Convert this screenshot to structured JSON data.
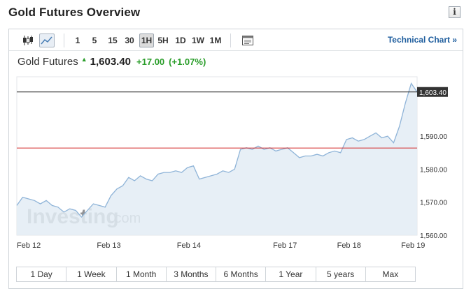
{
  "header": {
    "title": "Gold Futures Overview",
    "info_label": "i"
  },
  "toolbar": {
    "timeframes": [
      "1",
      "5",
      "15",
      "30",
      "1H",
      "5H",
      "1D",
      "1W",
      "1M"
    ],
    "active_timeframe": "1H",
    "technical_link": "Technical Chart »"
  },
  "quote": {
    "name": "Gold Futures",
    "arrow": "▲",
    "price": "1,603.40",
    "change": "+17.00",
    "change_pct": "(+1.07%)"
  },
  "watermark": {
    "brand": "Investing",
    "suffix": ".com"
  },
  "range_buttons": [
    "1 Day",
    "1 Week",
    "1 Month",
    "3 Months",
    "6 Months",
    "1 Year",
    "5 years",
    "Max"
  ],
  "colors": {
    "line": "#8fb4d8",
    "fill": "#e3ecf5",
    "up": "#2a9d2a",
    "link": "#1f5e9e",
    "ref_line": "#d32f2f",
    "last_line": "#222222",
    "price_tag": "#333333"
  },
  "chart_data": {
    "type": "area",
    "title": "",
    "xlabel": "",
    "ylabel": "",
    "ylim": [
      1560,
      1608
    ],
    "y_ticks": [
      "1,560.00",
      "1,570.00",
      "1,580.00",
      "1,590.00"
    ],
    "x_ticks": [
      "Feb 12",
      "Feb 13",
      "Feb 14",
      "Feb 17",
      "Feb 18",
      "Feb 19"
    ],
    "last_price": 1603.4,
    "last_price_label": "1,603.40",
    "reference_line": 1586.4,
    "series": [
      {
        "values": [
          1569.0,
          1571.5,
          1571.0,
          1570.5,
          1569.5,
          1570.5,
          1569.0,
          1568.5,
          1567.0,
          1568.0,
          1567.5,
          1565.5,
          1567.5,
          1569.5,
          1569.0,
          1568.5,
          1572.0,
          1574.0,
          1575.0,
          1577.5,
          1576.5,
          1578.0,
          1577.0,
          1576.5,
          1578.5,
          1579.0,
          1579.0,
          1579.5,
          1579.0,
          1580.5,
          1581.0,
          1577.0,
          1577.5,
          1578.0,
          1578.5,
          1579.5,
          1579.0,
          1580.0,
          1586.0,
          1586.5,
          1586.0,
          1587.0,
          1586.0,
          1586.5,
          1585.5,
          1586.0,
          1586.5,
          1585.0,
          1583.5,
          1584.0,
          1584.0,
          1584.5,
          1584.0,
          1585.0,
          1585.5,
          1585.0,
          1589.0,
          1589.5,
          1588.5,
          1589.0,
          1590.0,
          1591.0,
          1589.5,
          1590.0,
          1588.0,
          1593.0,
          1600.0,
          1606.0,
          1603.4
        ]
      }
    ]
  }
}
